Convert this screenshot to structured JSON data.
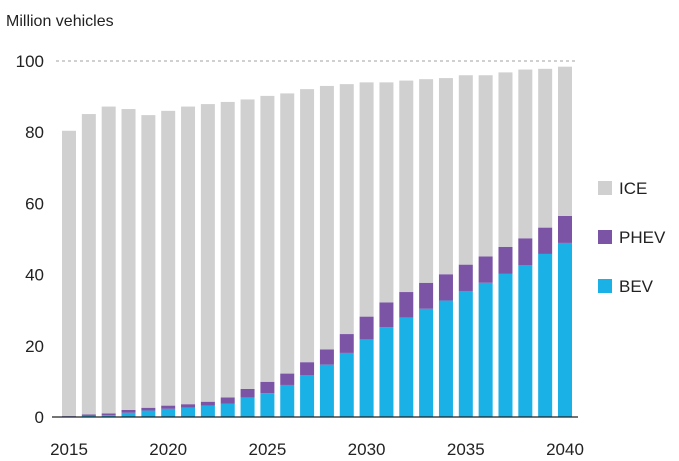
{
  "chart_data": {
    "type": "bar",
    "stacked": true,
    "title": "",
    "ylabel": "Million vehicles",
    "xlabel": "",
    "x": [
      2015,
      2016,
      2017,
      2018,
      2019,
      2020,
      2021,
      2022,
      2023,
      2024,
      2025,
      2026,
      2027,
      2028,
      2029,
      2030,
      2031,
      2032,
      2033,
      2034,
      2035,
      2036,
      2037,
      2038,
      2039,
      2040
    ],
    "xlim": [
      2015,
      2040
    ],
    "x_ticks": [
      "2015",
      "2020",
      "2025",
      "2030",
      "2035",
      "2040"
    ],
    "ylim": [
      0,
      100
    ],
    "y_ticks": [
      "0",
      "20",
      "40",
      "60",
      "80",
      "100"
    ],
    "grid": "dashed line at 100",
    "legend_position": "right",
    "series": [
      {
        "name": "BEV",
        "color": "#19b1e6",
        "values": [
          0.2,
          0.3,
          0.5,
          1.2,
          1.8,
          2.3,
          2.6,
          3.2,
          3.7,
          5.5,
          6.7,
          9.0,
          11.8,
          14.7,
          18.0,
          21.8,
          25.2,
          27.9,
          30.4,
          32.7,
          35.4,
          37.7,
          40.2,
          42.6,
          45.8,
          48.9
        ]
      },
      {
        "name": "PHEV",
        "color": "#7b54a6",
        "values": [
          0.1,
          0.4,
          0.5,
          0.8,
          0.8,
          0.9,
          1.0,
          1.1,
          1.8,
          2.4,
          3.2,
          3.2,
          3.6,
          4.3,
          5.3,
          6.4,
          7.0,
          7.2,
          7.3,
          7.4,
          7.4,
          7.4,
          7.6,
          7.6,
          7.4,
          7.6
        ]
      },
      {
        "name": "ICE",
        "color": "#d0d0d0",
        "values": [
          80.1,
          84.4,
          86.2,
          84.5,
          82.2,
          82.8,
          83.6,
          83.6,
          83.0,
          81.3,
          80.3,
          78.7,
          76.7,
          74.0,
          70.2,
          65.8,
          61.8,
          59.4,
          57.2,
          55.1,
          53.2,
          50.9,
          49.0,
          47.4,
          44.6,
          41.9
        ]
      }
    ]
  }
}
